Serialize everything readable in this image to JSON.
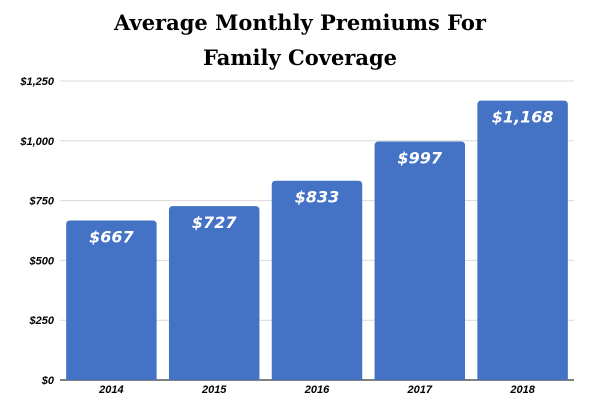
{
  "chart_data": {
    "type": "bar",
    "title_lines": [
      "Average Monthly Premiums For",
      "Family Coverage"
    ],
    "categories": [
      "2014",
      "2015",
      "2016",
      "2017",
      "2018"
    ],
    "values": [
      667,
      727,
      833,
      997,
      1168
    ],
    "data_labels": [
      "$667",
      "$727",
      "$833",
      "$997",
      "$1,168"
    ],
    "xlabel": "",
    "ylabel": "",
    "ylim": [
      0,
      1250
    ],
    "yticks": [
      0,
      250,
      500,
      750,
      1000,
      1250
    ],
    "ytick_labels": [
      "$0",
      "$250",
      "$500",
      "$750",
      "$1,000",
      "$1,250"
    ],
    "grid": true,
    "legend": "none",
    "bar_color": "#4472c4",
    "grid_color": "#d9d9d9",
    "label_color": "#ffffff"
  }
}
